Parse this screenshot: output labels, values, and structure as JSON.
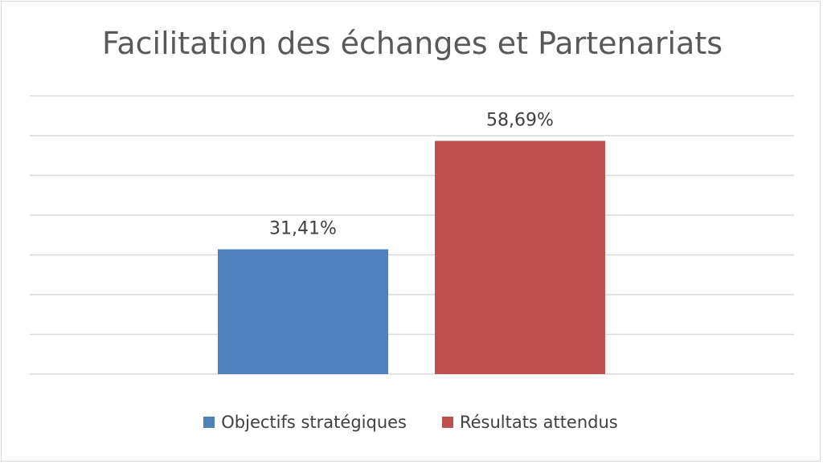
{
  "chart_data": {
    "type": "bar",
    "title": "Facilitation des échanges et Partenariats",
    "categories": [
      "Objectifs stratégiques",
      "Résultats attendus"
    ],
    "values": [
      31.41,
      58.69
    ],
    "data_labels": [
      "31,41%",
      "58,69%"
    ],
    "colors": [
      "#4f81bd",
      "#c0504d"
    ],
    "ylim": [
      0,
      70
    ],
    "gridlines": true,
    "axis_tick_labels_visible": false,
    "legend": {
      "position": "bottom",
      "entries": [
        "Objectifs stratégiques",
        "Résultats attendus"
      ]
    },
    "gridline_color": "#d9d9d9"
  }
}
